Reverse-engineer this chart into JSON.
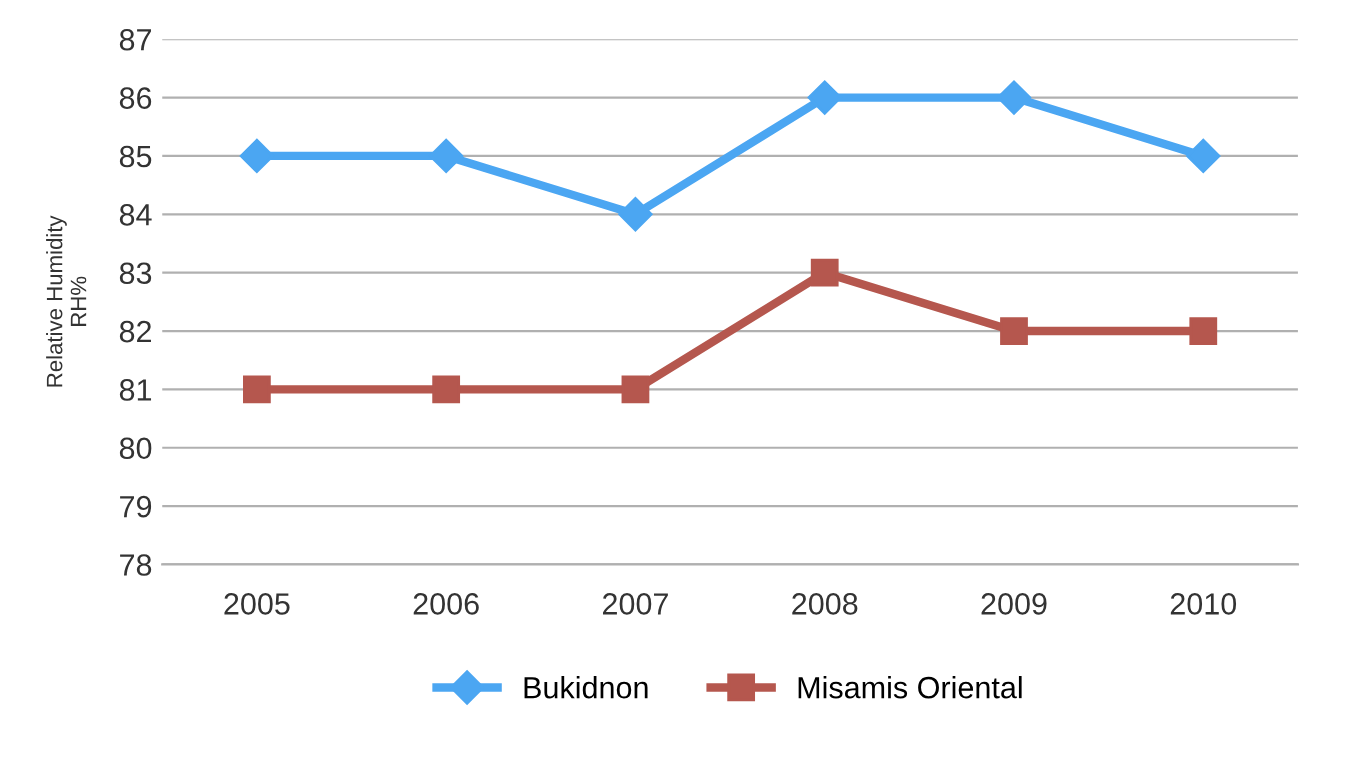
{
  "chart_data": {
    "type": "line",
    "ylabel": "Relative Humidity\nRH%",
    "categories": [
      "2005",
      "2006",
      "2007",
      "2008",
      "2009",
      "2010"
    ],
    "series": [
      {
        "name": "Bukidnon",
        "color": "#4ba6f2",
        "marker": "diamond",
        "values": [
          85,
          85,
          84,
          86,
          86,
          85
        ]
      },
      {
        "name": "Misamis Oriental",
        "color": "#b5574e",
        "marker": "square",
        "values": [
          81,
          81,
          81,
          83,
          82,
          82
        ]
      }
    ],
    "ylim": [
      78,
      87
    ],
    "yticks": [
      78,
      79,
      80,
      81,
      82,
      83,
      84,
      85,
      86,
      87
    ],
    "grid": "y",
    "legend": "bottom",
    "line_style": "solid"
  }
}
